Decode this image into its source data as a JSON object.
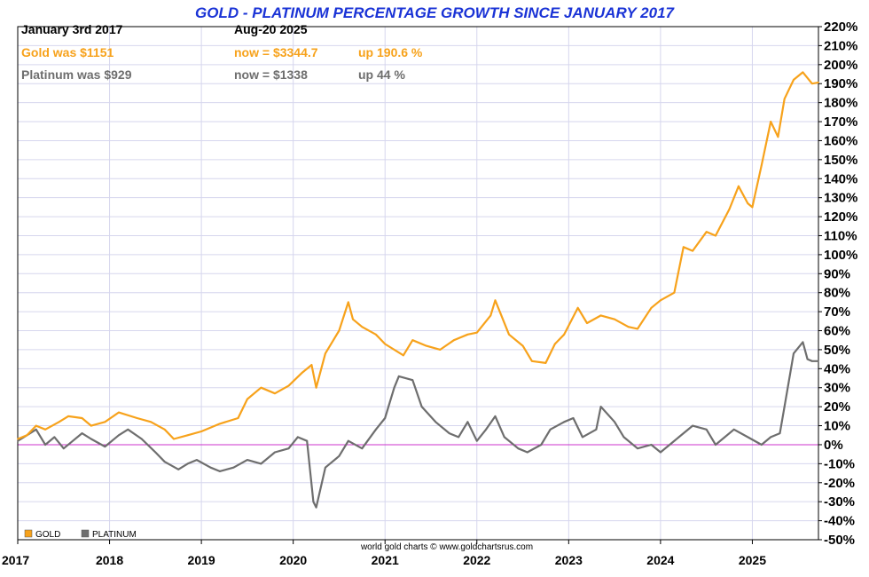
{
  "chart_data": {
    "type": "line",
    "title": "GOLD - PLATINUM PERCENTAGE GROWTH SINCE JANUARY 2017",
    "info": {
      "start_date": "January 3rd 2017",
      "end_date": "Aug-20  2025",
      "gold_start": "Gold was $1151",
      "gold_now": "now = $3344.7",
      "gold_change": "up 190.6 %",
      "platinum_start": "Platinum was $929",
      "platinum_now": "now = $1338",
      "platinum_change": "up 44 %"
    },
    "xlabel": "",
    "ylabel": "",
    "xlim": [
      2017.0,
      2025.72
    ],
    "ylim": [
      -50,
      220
    ],
    "x_ticks": [
      2017,
      2018,
      2019,
      2020,
      2021,
      2022,
      2023,
      2024,
      2025
    ],
    "x_tick_labels": [
      "2017",
      "2018",
      "2019",
      "2020",
      "2021",
      "2022",
      "2023",
      "2024",
      "2025"
    ],
    "y_ticks": [
      -50,
      -40,
      -30,
      -20,
      -10,
      0,
      10,
      20,
      30,
      40,
      50,
      60,
      70,
      80,
      90,
      100,
      110,
      120,
      130,
      140,
      150,
      160,
      170,
      180,
      190,
      200,
      210,
      220
    ],
    "y_tick_labels": [
      "-50%",
      "-40%",
      "-30%",
      "-20%",
      "-10%",
      "0%",
      "10%",
      "20%",
      "30%",
      "40%",
      "50%",
      "60%",
      "70%",
      "80%",
      "90%",
      "100%",
      "110%",
      "120%",
      "130%",
      "140%",
      "150%",
      "160%",
      "170%",
      "180%",
      "190%",
      "200%",
      "210%",
      "220%"
    ],
    "grid": true,
    "reference_line": 0,
    "legend": {
      "placement": "bottom-left",
      "entries": [
        "GOLD",
        "PLATINUM"
      ]
    },
    "series": [
      {
        "name": "GOLD",
        "color": "#f7a21b",
        "x": [
          2017.0,
          2017.1,
          2017.2,
          2017.3,
          2017.45,
          2017.55,
          2017.7,
          2017.8,
          2017.95,
          2018.1,
          2018.3,
          2018.45,
          2018.6,
          2018.7,
          2018.85,
          2019.0,
          2019.2,
          2019.4,
          2019.5,
          2019.65,
          2019.8,
          2019.95,
          2020.1,
          2020.2,
          2020.25,
          2020.35,
          2020.5,
          2020.6,
          2020.65,
          2020.75,
          2020.9,
          2021.0,
          2021.2,
          2021.3,
          2021.45,
          2021.6,
          2021.75,
          2021.9,
          2022.0,
          2022.15,
          2022.2,
          2022.35,
          2022.5,
          2022.6,
          2022.75,
          2022.85,
          2022.95,
          2023.1,
          2023.2,
          2023.35,
          2023.5,
          2023.65,
          2023.75,
          2023.9,
          2024.0,
          2024.15,
          2024.25,
          2024.35,
          2024.5,
          2024.6,
          2024.75,
          2024.85,
          2024.95,
          2025.0,
          2025.1,
          2025.2,
          2025.28,
          2025.35,
          2025.45,
          2025.55,
          2025.65,
          2025.72
        ],
        "values": [
          3,
          5,
          10,
          8,
          12,
          15,
          14,
          10,
          12,
          17,
          14,
          12,
          8,
          3,
          5,
          7,
          11,
          14,
          24,
          30,
          27,
          31,
          38,
          42,
          30,
          48,
          60,
          75,
          66,
          62,
          58,
          53,
          47,
          55,
          52,
          50,
          55,
          58,
          59,
          68,
          76,
          58,
          52,
          44,
          43,
          53,
          58,
          72,
          64,
          68,
          66,
          62,
          61,
          72,
          76,
          80,
          104,
          102,
          112,
          110,
          124,
          136,
          127,
          125,
          147,
          170,
          162,
          182,
          192,
          196,
          190,
          190.6
        ]
      },
      {
        "name": "PLATINUM",
        "color": "#6e6e6e",
        "x": [
          2017.0,
          2017.1,
          2017.2,
          2017.3,
          2017.4,
          2017.5,
          2017.6,
          2017.7,
          2017.8,
          2017.95,
          2018.1,
          2018.2,
          2018.35,
          2018.5,
          2018.6,
          2018.75,
          2018.85,
          2018.95,
          2019.1,
          2019.2,
          2019.35,
          2019.5,
          2019.65,
          2019.8,
          2019.95,
          2020.05,
          2020.15,
          2020.22,
          2020.25,
          2020.35,
          2020.5,
          2020.6,
          2020.75,
          2020.9,
          2021.0,
          2021.1,
          2021.15,
          2021.3,
          2021.4,
          2021.55,
          2021.7,
          2021.8,
          2021.9,
          2022.0,
          2022.1,
          2022.2,
          2022.3,
          2022.45,
          2022.55,
          2022.7,
          2022.8,
          2022.95,
          2023.05,
          2023.15,
          2023.3,
          2023.35,
          2023.5,
          2023.6,
          2023.75,
          2023.9,
          2024.0,
          2024.1,
          2024.2,
          2024.35,
          2024.5,
          2024.6,
          2024.7,
          2024.8,
          2024.95,
          2025.1,
          2025.2,
          2025.3,
          2025.35,
          2025.45,
          2025.55,
          2025.6,
          2025.65,
          2025.72
        ],
        "values": [
          2,
          5,
          8,
          0,
          4,
          -2,
          2,
          6,
          3,
          -1,
          5,
          8,
          3,
          -4,
          -9,
          -13,
          -10,
          -8,
          -12,
          -14,
          -12,
          -8,
          -10,
          -4,
          -2,
          4,
          2,
          -30,
          -33,
          -12,
          -6,
          2,
          -2,
          8,
          14,
          30,
          36,
          34,
          20,
          12,
          6,
          4,
          12,
          2,
          8,
          15,
          4,
          -2,
          -4,
          0,
          8,
          12,
          14,
          4,
          8,
          20,
          12,
          4,
          -2,
          0,
          -4,
          0,
          4,
          10,
          8,
          0,
          4,
          8,
          4,
          0,
          4,
          6,
          20,
          48,
          54,
          45,
          44,
          44
        ]
      }
    ]
  },
  "credit": "world gold charts © www.goldchartsrus.com"
}
